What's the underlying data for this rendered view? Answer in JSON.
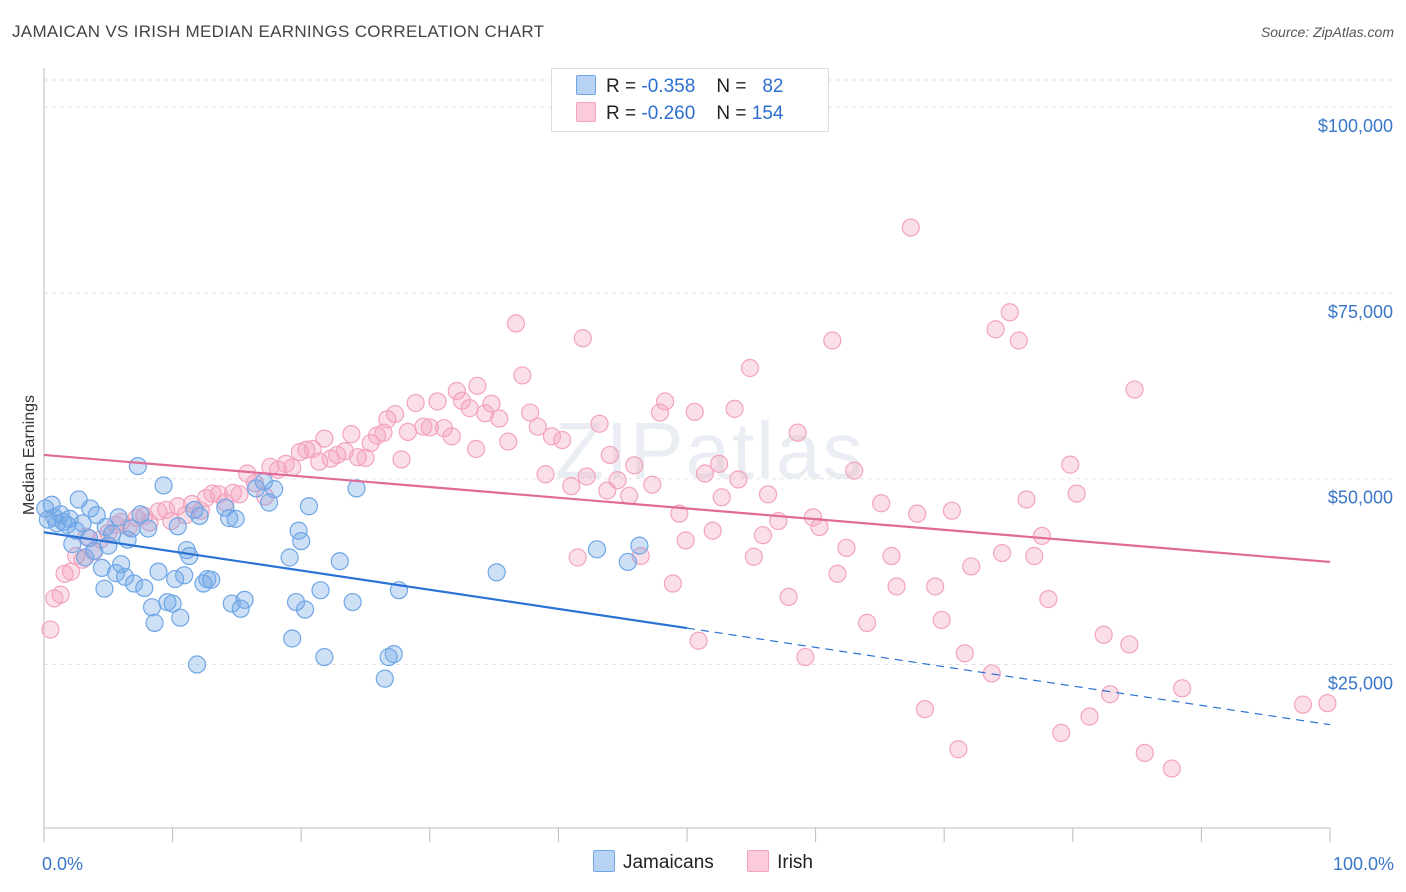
{
  "title": "JAMAICAN VS IRISH MEDIAN EARNINGS CORRELATION CHART",
  "source": "Source: ZipAtlas.com",
  "watermark": {
    "zip": "ZIP",
    "atlas": "atlas"
  },
  "colors": {
    "jamaicans": "#6fa6e6",
    "irish": "#f3a3bd",
    "jamaicans_line": "#2a72d4",
    "irish_line": "#e06a96",
    "tick": "#3a77c8"
  },
  "stats": {
    "jamaicans": {
      "r_label": "R =",
      "r": "-0.358",
      "n_label": "N =",
      "n": "82"
    },
    "irish": {
      "r_label": "R =",
      "r": "-0.260",
      "n_label": "N =",
      "n": "154"
    }
  },
  "legend": {
    "jamaicans": "Jamaicans",
    "irish": "Irish"
  },
  "chart_data": {
    "type": "scatter",
    "title": "JAMAICAN VS IRISH MEDIAN EARNINGS CORRELATION CHART",
    "xlabel": "",
    "ylabel": "Median Earnings",
    "xlim": [
      0,
      100
    ],
    "ylim": [
      3000,
      105000
    ],
    "x_ticks": [
      {
        "value": 0,
        "label": "0.0%"
      },
      {
        "value": 100,
        "label": "100.0%"
      }
    ],
    "y_ticks": [
      {
        "value": 25000,
        "label": "$25,000"
      },
      {
        "value": 50000,
        "label": "$50,000"
      },
      {
        "value": 75000,
        "label": "$75,000"
      },
      {
        "value": 100000,
        "label": "$100,000"
      }
    ],
    "grid": true,
    "legend_position": "bottom",
    "series": [
      {
        "name": "Jamaicans",
        "trend": {
          "x0": 0,
          "y0": 42800,
          "x1": 50,
          "y1": 29900,
          "dash_to_x": 100,
          "dash_to_y": 16900
        },
        "points": [
          [
            0.1,
            46000
          ],
          [
            0.3,
            44500
          ],
          [
            0.6,
            46500
          ],
          [
            0.8,
            44800
          ],
          [
            1.0,
            44000
          ],
          [
            1.3,
            45200
          ],
          [
            1.5,
            44200
          ],
          [
            1.8,
            43800
          ],
          [
            2.0,
            44600
          ],
          [
            2.2,
            41200
          ],
          [
            2.5,
            43000
          ],
          [
            2.7,
            47200
          ],
          [
            3.0,
            44000
          ],
          [
            3.2,
            39400
          ],
          [
            3.5,
            42000
          ],
          [
            3.6,
            46000
          ],
          [
            3.9,
            40300
          ],
          [
            4.1,
            45100
          ],
          [
            4.5,
            38000
          ],
          [
            4.7,
            35200
          ],
          [
            4.8,
            43500
          ],
          [
            5.0,
            41000
          ],
          [
            5.3,
            42600
          ],
          [
            5.6,
            37300
          ],
          [
            5.8,
            44800
          ],
          [
            6.0,
            38500
          ],
          [
            6.3,
            36800
          ],
          [
            6.5,
            41800
          ],
          [
            6.8,
            43300
          ],
          [
            7.0,
            35900
          ],
          [
            7.3,
            51700
          ],
          [
            7.5,
            45200
          ],
          [
            7.8,
            35300
          ],
          [
            8.1,
            43300
          ],
          [
            8.4,
            32700
          ],
          [
            8.6,
            30600
          ],
          [
            8.9,
            37500
          ],
          [
            9.3,
            49100
          ],
          [
            9.6,
            33400
          ],
          [
            10.0,
            33200
          ],
          [
            10.2,
            36500
          ],
          [
            10.4,
            43600
          ],
          [
            10.6,
            31300
          ],
          [
            10.9,
            37000
          ],
          [
            11.1,
            40400
          ],
          [
            11.3,
            39600
          ],
          [
            11.7,
            45800
          ],
          [
            11.9,
            25000
          ],
          [
            12.1,
            45000
          ],
          [
            12.4,
            35900
          ],
          [
            12.7,
            36500
          ],
          [
            13.0,
            36400
          ],
          [
            14.1,
            46100
          ],
          [
            14.4,
            44700
          ],
          [
            14.6,
            33200
          ],
          [
            14.9,
            44600
          ],
          [
            15.3,
            32500
          ],
          [
            15.6,
            33700
          ],
          [
            16.5,
            48700
          ],
          [
            17.1,
            49600
          ],
          [
            17.5,
            46800
          ],
          [
            17.9,
            48600
          ],
          [
            19.1,
            39400
          ],
          [
            19.3,
            28500
          ],
          [
            19.6,
            33400
          ],
          [
            19.8,
            43000
          ],
          [
            20.0,
            41600
          ],
          [
            20.3,
            32400
          ],
          [
            20.6,
            46300
          ],
          [
            21.5,
            35000
          ],
          [
            21.8,
            26000
          ],
          [
            23.0,
            38900
          ],
          [
            24.0,
            33400
          ],
          [
            24.3,
            48700
          ],
          [
            26.5,
            23100
          ],
          [
            26.8,
            26000
          ],
          [
            27.2,
            26400
          ],
          [
            27.6,
            35000
          ],
          [
            35.2,
            37400
          ],
          [
            45.4,
            38800
          ],
          [
            46.3,
            41000
          ],
          [
            43.0,
            40500
          ]
        ]
      },
      {
        "name": "Irish",
        "trend": {
          "x0": 0,
          "y0": 53200,
          "x1": 100,
          "y1": 38800
        },
        "points": [
          [
            0.5,
            29700
          ],
          [
            0.8,
            33900
          ],
          [
            1.3,
            34400
          ],
          [
            1.6,
            37200
          ],
          [
            2.1,
            37500
          ],
          [
            2.5,
            39600
          ],
          [
            3.0,
            39100
          ],
          [
            3.3,
            42200
          ],
          [
            3.9,
            40200
          ],
          [
            4.4,
            41800
          ],
          [
            5.0,
            42700
          ],
          [
            5.6,
            43800
          ],
          [
            6.0,
            44200
          ],
          [
            6.6,
            43500
          ],
          [
            7.2,
            44700
          ],
          [
            7.8,
            45000
          ],
          [
            8.2,
            44100
          ],
          [
            8.9,
            45600
          ],
          [
            9.5,
            45800
          ],
          [
            9.9,
            44300
          ],
          [
            10.4,
            46300
          ],
          [
            11.0,
            45100
          ],
          [
            11.5,
            46600
          ],
          [
            12.2,
            45700
          ],
          [
            12.6,
            47400
          ],
          [
            13.1,
            48000
          ],
          [
            13.6,
            47900
          ],
          [
            14.1,
            46800
          ],
          [
            14.7,
            48100
          ],
          [
            15.2,
            47900
          ],
          [
            15.8,
            50700
          ],
          [
            16.4,
            49400
          ],
          [
            17.2,
            47600
          ],
          [
            17.6,
            51600
          ],
          [
            18.2,
            51200
          ],
          [
            18.8,
            52000
          ],
          [
            19.3,
            51500
          ],
          [
            19.9,
            53600
          ],
          [
            20.4,
            53900
          ],
          [
            20.9,
            54000
          ],
          [
            21.4,
            52300
          ],
          [
            21.8,
            55400
          ],
          [
            22.3,
            52700
          ],
          [
            22.8,
            53200
          ],
          [
            23.4,
            53700
          ],
          [
            23.9,
            56000
          ],
          [
            24.4,
            52900
          ],
          [
            25.0,
            52800
          ],
          [
            25.4,
            54800
          ],
          [
            25.9,
            55800
          ],
          [
            26.4,
            56200
          ],
          [
            26.7,
            58000
          ],
          [
            27.3,
            58700
          ],
          [
            27.8,
            52600
          ],
          [
            28.3,
            56300
          ],
          [
            28.9,
            60200
          ],
          [
            29.5,
            57000
          ],
          [
            30.0,
            56900
          ],
          [
            30.6,
            60400
          ],
          [
            31.1,
            56800
          ],
          [
            31.7,
            55700
          ],
          [
            32.1,
            61800
          ],
          [
            32.5,
            60500
          ],
          [
            33.1,
            59500
          ],
          [
            33.6,
            54000
          ],
          [
            33.7,
            62500
          ],
          [
            34.3,
            58800
          ],
          [
            34.8,
            60100
          ],
          [
            35.4,
            58100
          ],
          [
            36.1,
            55000
          ],
          [
            36.7,
            70900
          ],
          [
            37.2,
            63900
          ],
          [
            37.8,
            58900
          ],
          [
            38.4,
            57000
          ],
          [
            39.0,
            50600
          ],
          [
            39.5,
            55700
          ],
          [
            40.3,
            55200
          ],
          [
            41.0,
            49000
          ],
          [
            41.5,
            39400
          ],
          [
            41.9,
            68900
          ],
          [
            42.2,
            50300
          ],
          [
            43.2,
            57400
          ],
          [
            43.8,
            48400
          ],
          [
            44.0,
            53200
          ],
          [
            44.6,
            49800
          ],
          [
            45.5,
            47700
          ],
          [
            45.9,
            51800
          ],
          [
            46.4,
            39600
          ],
          [
            47.3,
            49200
          ],
          [
            47.9,
            58900
          ],
          [
            48.3,
            60400
          ],
          [
            48.9,
            35900
          ],
          [
            49.4,
            45300
          ],
          [
            49.9,
            41700
          ],
          [
            50.6,
            59000
          ],
          [
            50.9,
            28200
          ],
          [
            51.4,
            50700
          ],
          [
            52.0,
            43000
          ],
          [
            52.5,
            52000
          ],
          [
            52.7,
            47500
          ],
          [
            53.7,
            59400
          ],
          [
            54.0,
            49900
          ],
          [
            54.9,
            64900
          ],
          [
            55.2,
            39500
          ],
          [
            55.9,
            42400
          ],
          [
            56.3,
            47900
          ],
          [
            57.1,
            44300
          ],
          [
            57.9,
            34100
          ],
          [
            58.6,
            56200
          ],
          [
            59.2,
            26000
          ],
          [
            59.8,
            44800
          ],
          [
            60.3,
            43500
          ],
          [
            61.3,
            68600
          ],
          [
            61.7,
            37200
          ],
          [
            62.4,
            40700
          ],
          [
            63.0,
            51100
          ],
          [
            64.0,
            30600
          ],
          [
            65.1,
            46700
          ],
          [
            65.9,
            39600
          ],
          [
            66.3,
            35500
          ],
          [
            67.4,
            83800
          ],
          [
            67.9,
            45300
          ],
          [
            68.5,
            19000
          ],
          [
            69.3,
            35500
          ],
          [
            69.8,
            31000
          ],
          [
            70.6,
            45700
          ],
          [
            71.1,
            13600
          ],
          [
            71.6,
            26500
          ],
          [
            72.1,
            38200
          ],
          [
            73.7,
            23800
          ],
          [
            74.0,
            70100
          ],
          [
            74.5,
            40000
          ],
          [
            75.1,
            72400
          ],
          [
            75.8,
            68600
          ],
          [
            76.4,
            47200
          ],
          [
            77.0,
            39600
          ],
          [
            77.6,
            42300
          ],
          [
            78.1,
            33800
          ],
          [
            79.1,
            15800
          ],
          [
            79.8,
            51900
          ],
          [
            80.3,
            48000
          ],
          [
            81.3,
            18000
          ],
          [
            82.4,
            29000
          ],
          [
            82.9,
            21000
          ],
          [
            84.4,
            27700
          ],
          [
            84.8,
            62000
          ],
          [
            85.6,
            13100
          ],
          [
            87.7,
            11000
          ],
          [
            88.5,
            21800
          ],
          [
            97.9,
            19600
          ],
          [
            99.8,
            19800
          ]
        ]
      }
    ]
  }
}
